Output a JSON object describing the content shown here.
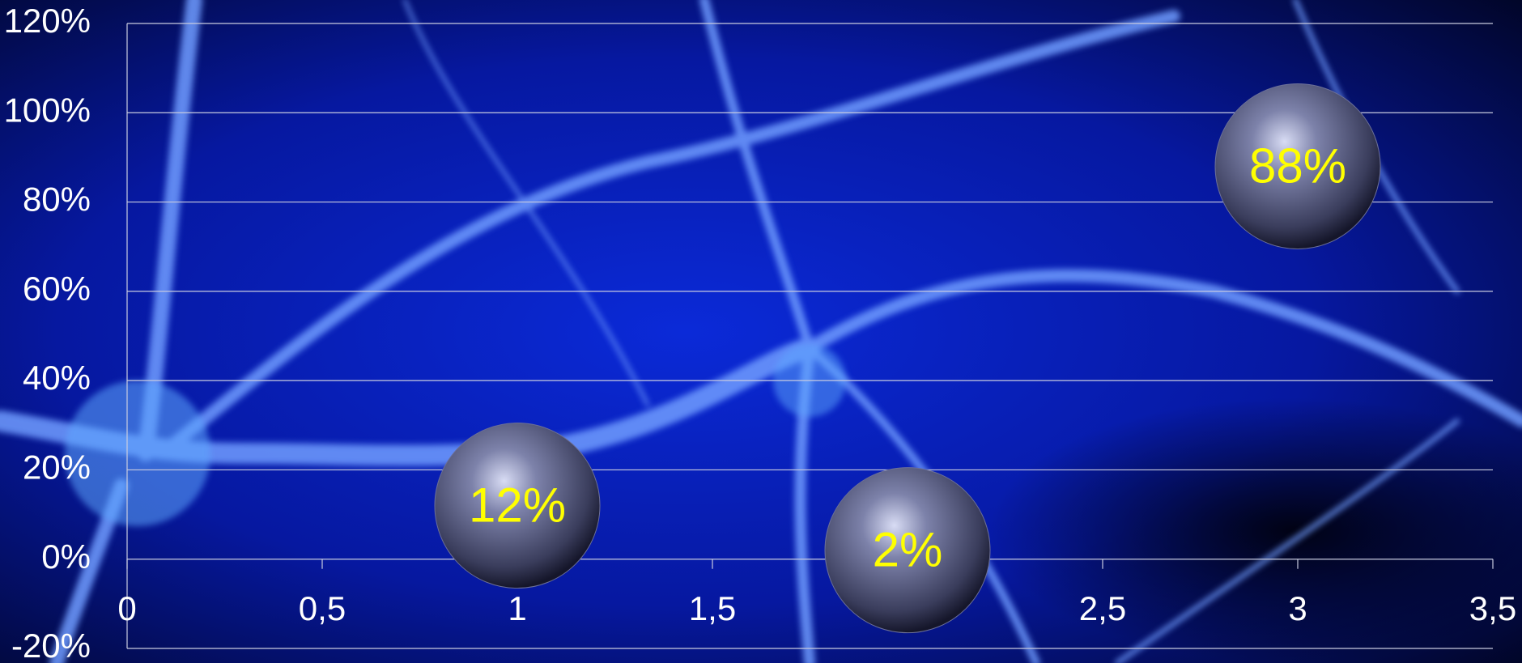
{
  "chart_data": {
    "type": "bubble",
    "x": [
      1,
      2,
      3
    ],
    "values": [
      12,
      2,
      88
    ],
    "value_labels": [
      "12%",
      "2%",
      "88%"
    ],
    "color": "#6b6f98",
    "label_color": "#ffff00",
    "xlim": [
      0,
      3.5
    ],
    "xticks": [
      0,
      {
        "value": 0.5,
        "label": "0,5"
      },
      1,
      {
        "value": 1.5,
        "label": "1,5"
      },
      2,
      {
        "value": 2.5,
        "label": "2,5"
      },
      3,
      {
        "value": 3.5,
        "label": "3,5"
      }
    ],
    "ylim": [
      -20,
      120
    ],
    "yticks": [
      {
        "value": -20,
        "label": "-20%"
      },
      {
        "value": 0,
        "label": "0%"
      },
      {
        "value": 20,
        "label": "20%"
      },
      {
        "value": 40,
        "label": "40%"
      },
      {
        "value": 60,
        "label": "60%"
      },
      {
        "value": 80,
        "label": "80%"
      },
      {
        "value": 100,
        "label": "100%"
      },
      {
        "value": 120,
        "label": "120%"
      }
    ],
    "grid": true
  }
}
